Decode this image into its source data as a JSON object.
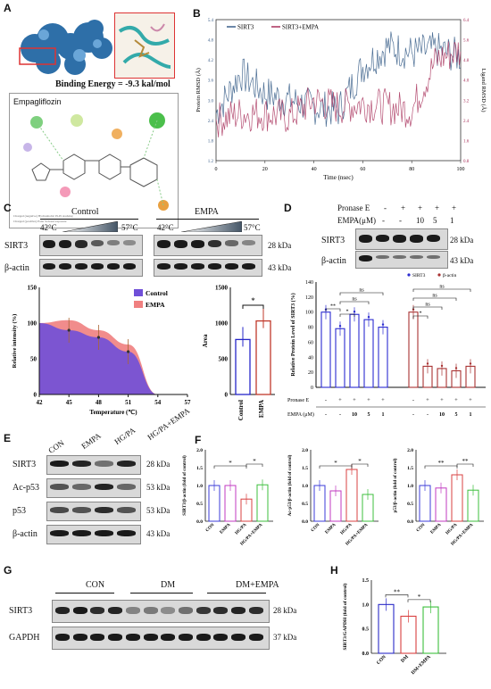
{
  "panels": {
    "A": "A",
    "B": "B",
    "C": "C",
    "D": "D",
    "E": "E",
    "F": "F",
    "G": "G",
    "H": "H"
  },
  "panelA": {
    "binding": "Binding Energy = -9.3 kal/mol",
    "ligand": "Empagliflozin"
  },
  "panelB": {
    "legend": [
      "SIRT3",
      "SIRT3+EMPA"
    ],
    "xlabel": "Time (nsec)",
    "ylabel_left": "Protein RMSD (Å)",
    "ylabel_right": "Ligand RMSD (Å)",
    "xticks": [
      "0",
      "20",
      "40",
      "60",
      "80",
      "100"
    ],
    "yticks_left": [
      "1.2",
      "1.8",
      "2.4",
      "3.0",
      "3.6",
      "4.2",
      "4.8",
      "5.4"
    ],
    "yticks_right": [
      "0.8",
      "1.6",
      "2.4",
      "3.2",
      "4.0",
      "4.8",
      "5.6",
      "6.4"
    ],
    "colors": {
      "sirt3": "#3a5f8a",
      "empa": "#a8305a"
    }
  },
  "panelC": {
    "control": "Control",
    "empa": "EMPA",
    "t_low": "42°C",
    "t_high": "57°C",
    "kda1": "28 kDa",
    "kda2": "43 kDa",
    "row1": "SIRT3",
    "row2": "β-actin",
    "curve_legend": [
      "Control",
      "EMPA"
    ],
    "ylabel": "Relative intensity (%)",
    "xlabel": "Temperature (℃)",
    "xticks": [
      "42",
      "45",
      "48",
      "51",
      "54",
      "57"
    ],
    "yticks": [
      "0",
      "50",
      "100",
      "150"
    ],
    "bar_ylabel": "Area",
    "bar_yticks": [
      "0",
      "500",
      "1000",
      "1500"
    ],
    "bar_cats": [
      "Control",
      "EMPA"
    ],
    "sig": "*",
    "colors": {
      "control": "#6f4fd8",
      "empa": "#f08080"
    }
  },
  "panelD": {
    "pronase": "Pronase E",
    "empa": "EMPA(μM)",
    "minus": "-",
    "plus": "+",
    "doses": [
      "10",
      "5",
      "1"
    ],
    "row1": "SIRT3",
    "row2": "β-actin",
    "kda1": "28 kDa",
    "kda2": "43 kDa",
    "legend": [
      "SIRT3",
      "β-actin"
    ],
    "ylabel": "Relative Protein Level of SIRT3 (%)",
    "yticks": [
      "0",
      "20",
      "40",
      "60",
      "80",
      "100",
      "120",
      "140"
    ],
    "row_pronase": "Pronase E",
    "row_empa": "EMPA (μM)",
    "ns": "ns",
    "sig1": "**",
    "sig2": "*",
    "colors": {
      "sirt3": "#2b2bd0",
      "actin": "#a83232"
    }
  },
  "panelE": {
    "cols": [
      "CON",
      "EMPA",
      "HG/PA",
      "HG/PA+EMPA"
    ],
    "rows": [
      "SIRT3",
      "Ac-p53",
      "p53",
      "β-actin"
    ],
    "kda": [
      "28 kDa",
      "53 kDa",
      "53 kDa",
      "43 kDa"
    ]
  },
  "panelF": {
    "cats": [
      "CON",
      "EMPA",
      "HG/PA",
      "HG/PA+EMPA"
    ],
    "ylabels": [
      "SIRT3/β-actin (fold of control)",
      "Ac-p53/β-actin (fold of control)",
      "p53/β-actin (fold of control)"
    ],
    "yticks": [
      "0.0",
      "0.5",
      "1.0",
      "1.5",
      "2.0"
    ],
    "sigs": [
      [
        "*",
        "*"
      ],
      [
        "*",
        "*"
      ],
      [
        "**",
        "**"
      ]
    ],
    "colors": [
      "#3b3bd8",
      "#c03ac0",
      "#d84040",
      "#3cbf3c"
    ]
  },
  "panelG": {
    "groups": [
      "CON",
      "DM",
      "DM+EMPA"
    ],
    "rows": [
      "SIRT3",
      "GAPDH"
    ],
    "kda": [
      "28 kDa",
      "37 kDa"
    ]
  },
  "panelH": {
    "cats": [
      "CON",
      "DM",
      "DM+EMPA"
    ],
    "ylabel": "SIRT3/GAPDH (fold of control)",
    "yticks": [
      "0.0",
      "0.5",
      "1.0",
      "1.5"
    ],
    "sigs": [
      "**",
      "*"
    ]
  },
  "chart_data": [
    {
      "type": "line",
      "title": "",
      "xlabel": "Time (nsec)",
      "ylabel": "Protein RMSD (Å)",
      "xlim": [
        0,
        100
      ],
      "ylim": [
        1.2,
        5.4
      ],
      "series": [
        {
          "name": "SIRT3",
          "x": [
            0,
            10,
            20,
            30,
            40,
            50,
            60,
            70,
            80,
            90,
            100
          ],
          "values": [
            2.6,
            3.8,
            3.2,
            3.0,
            2.8,
            2.7,
            4.0,
            4.6,
            4.4,
            4.5,
            4.3
          ]
        },
        {
          "name": "SIRT3+EMPA",
          "x": [
            0,
            10,
            20,
            30,
            40,
            50,
            60,
            70,
            80,
            90,
            100
          ],
          "values": [
            2.4,
            2.6,
            2.6,
            2.5,
            3.0,
            2.8,
            2.9,
            2.8,
            2.7,
            4.2,
            4.5
          ]
        }
      ]
    },
    {
      "type": "area",
      "title": "",
      "xlabel": "Temperature (℃)",
      "ylabel": "Relative intensity (%)",
      "xlim": [
        42,
        57
      ],
      "ylim": [
        0,
        150
      ],
      "x": [
        42,
        45,
        48,
        51,
        54,
        57
      ],
      "series": [
        {
          "name": "Control",
          "values": [
            100,
            90,
            80,
            60,
            0,
            0
          ]
        },
        {
          "name": "EMPA",
          "values": [
            100,
            104,
            90,
            70,
            0,
            0
          ]
        }
      ]
    },
    {
      "type": "bar",
      "title": "",
      "ylabel": "Area",
      "ylim": [
        0,
        1500
      ],
      "categories": [
        "Control",
        "EMPA"
      ],
      "values": [
        770,
        1030
      ]
    },
    {
      "type": "bar",
      "title": "",
      "ylabel": "Relative Protein Level of SIRT3 (%)",
      "ylim": [
        0,
        140
      ],
      "categories": [
        "-/-",
        "+/-",
        "+/10",
        "+/5",
        "+/1"
      ],
      "series": [
        {
          "name": "SIRT3",
          "values": [
            100,
            78,
            97,
            90,
            80
          ]
        },
        {
          "name": "β-actin",
          "values": [
            100,
            28,
            25,
            22,
            28
          ]
        }
      ]
    },
    {
      "type": "bar",
      "title": "",
      "ylabel": "SIRT3/β-actin (fold of control)",
      "ylim": [
        0,
        2.0
      ],
      "categories": [
        "CON",
        "EMPA",
        "HG/PA",
        "HG/PA+EMPA"
      ],
      "values": [
        1.0,
        1.0,
        0.62,
        1.02
      ]
    },
    {
      "type": "bar",
      "title": "",
      "ylabel": "Ac-p53/β-actin (fold of control)",
      "ylim": [
        0,
        2.0
      ],
      "categories": [
        "CON",
        "EMPA",
        "HG/PA",
        "HG/PA+EMPA"
      ],
      "values": [
        1.0,
        0.85,
        1.45,
        0.75
      ]
    },
    {
      "type": "bar",
      "title": "",
      "ylabel": "p53/β-actin (fold of control)",
      "ylim": [
        0,
        2.0
      ],
      "categories": [
        "CON",
        "EMPA",
        "HG/PA",
        "HG/PA+EMPA"
      ],
      "values": [
        1.0,
        0.93,
        1.3,
        0.87
      ]
    },
    {
      "type": "bar",
      "title": "",
      "ylabel": "SIRT3/GAPDH (fold of control)",
      "ylim": [
        0,
        1.5
      ],
      "categories": [
        "CON",
        "DM",
        "DM+EMPA"
      ],
      "values": [
        1.0,
        0.76,
        0.95
      ]
    }
  ]
}
